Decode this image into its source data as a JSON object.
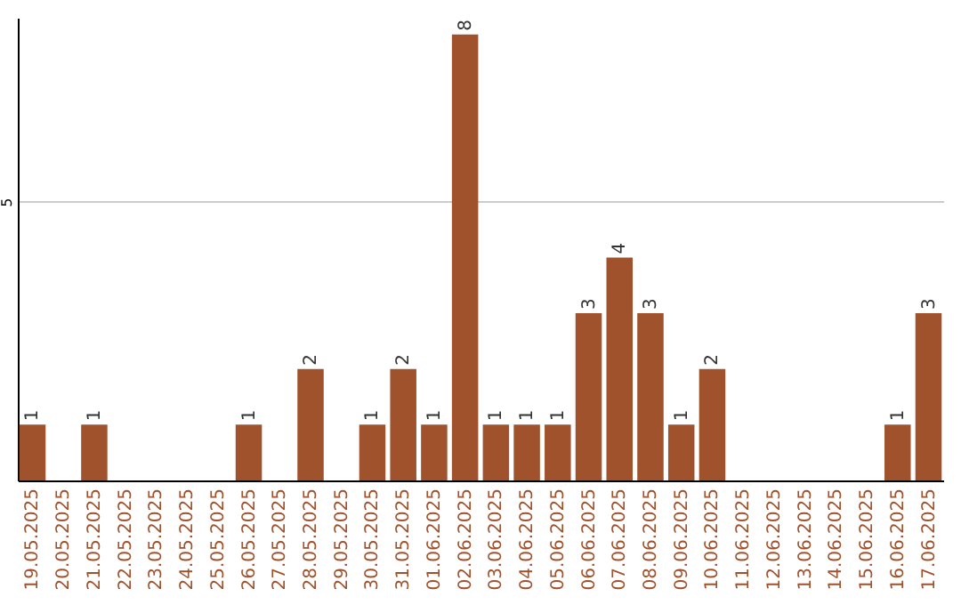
{
  "chart_data": {
    "type": "bar",
    "categories": [
      "19.05.2025",
      "20.05.2025",
      "21.05.2025",
      "22.05.2025",
      "23.05.2025",
      "24.05.2025",
      "25.05.2025",
      "26.05.2025",
      "27.05.2025",
      "28.05.2025",
      "29.05.2025",
      "30.05.2025",
      "31.05.2025",
      "01.06.2025",
      "02.06.2025",
      "03.06.2025",
      "04.06.2025",
      "05.06.2025",
      "06.06.2025",
      "07.06.2025",
      "08.06.2025",
      "09.06.2025",
      "10.06.2025",
      "11.06.2025",
      "12.06.2025",
      "13.06.2025",
      "14.06.2025",
      "15.06.2025",
      "16.06.2025",
      "17.06.2025"
    ],
    "values": [
      1,
      0,
      1,
      0,
      0,
      0,
      0,
      1,
      0,
      2,
      0,
      1,
      2,
      1,
      8,
      1,
      1,
      1,
      3,
      4,
      3,
      1,
      2,
      0,
      0,
      0,
      0,
      0,
      1,
      3
    ],
    "value_labels": [
      "1",
      null,
      "1",
      null,
      null,
      null,
      null,
      "1",
      null,
      "2",
      null,
      "1",
      "2",
      "1",
      "8",
      "1",
      "1",
      "1",
      "3",
      "4",
      "3",
      "1",
      "2",
      null,
      null,
      null,
      null,
      null,
      "1",
      "3"
    ],
    "color": "#a0522d",
    "ylim": [
      0,
      8.3
    ],
    "yticks": [
      5
    ],
    "grid": "y"
  }
}
